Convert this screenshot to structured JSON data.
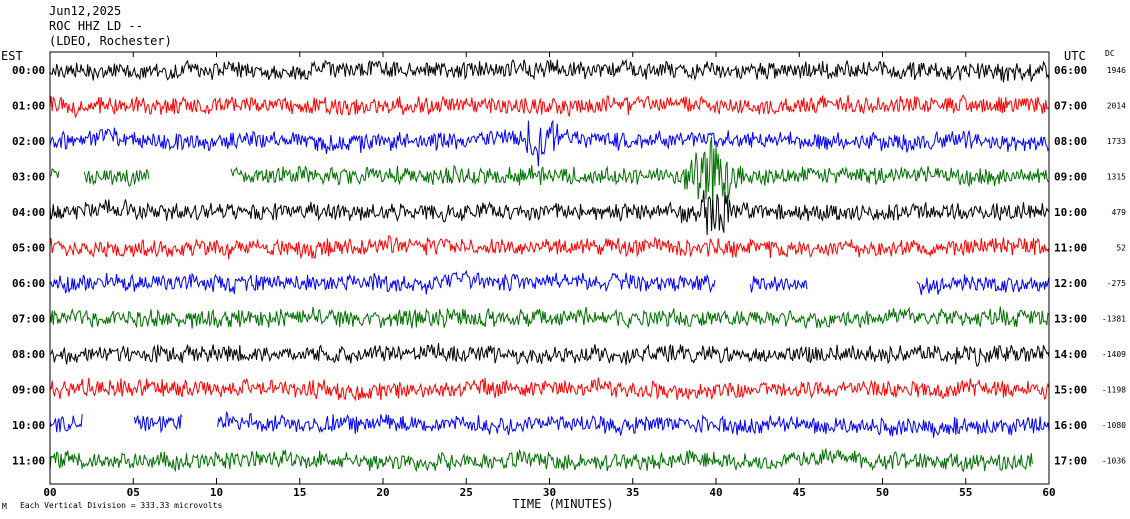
{
  "header": {
    "date": "Jun12,2025",
    "station": "ROC HHZ LD --",
    "network": "(LDEO, Rochester)"
  },
  "left_axis_label": "EST",
  "right_axis_label": "UTC",
  "dc_label": "DC",
  "footer_note": "Each Vertical Division =  333.33 microvolts",
  "corner_mark": "M",
  "colors": {
    "trace_cycle": [
      "#000000",
      "#ff0000",
      "#0000ff",
      "#007000"
    ],
    "frame": "#000000",
    "background": "#ffffff"
  },
  "chart_data": {
    "type": "line",
    "subtype": "helicorder",
    "xlabel": "TIME (MINUTES)",
    "xlim": [
      0,
      60
    ],
    "x_ticks": [
      "00",
      "05",
      "10",
      "15",
      "20",
      "25",
      "30",
      "35",
      "40",
      "45",
      "50",
      "55",
      "60"
    ],
    "rows": [
      {
        "est": "00:00",
        "utc": "06:00",
        "dc": "1946"
      },
      {
        "est": "01:00",
        "utc": "07:00",
        "dc": "2014"
      },
      {
        "est": "02:00",
        "utc": "08:00",
        "dc": "1733"
      },
      {
        "est": "03:00",
        "utc": "09:00",
        "dc": "1315"
      },
      {
        "est": "04:00",
        "utc": "10:00",
        "dc": "479"
      },
      {
        "est": "05:00",
        "utc": "11:00",
        "dc": "52"
      },
      {
        "est": "06:00",
        "utc": "12:00",
        "dc": "-275"
      },
      {
        "est": "07:00",
        "utc": "13:00",
        "dc": "-1381"
      },
      {
        "est": "08:00",
        "utc": "14:00",
        "dc": "-1409"
      },
      {
        "est": "09:00",
        "utc": "15:00",
        "dc": "-1198"
      },
      {
        "est": "10:00",
        "utc": "16:00",
        "dc": "-1080"
      },
      {
        "est": "11:00",
        "utc": "17:00",
        "dc": "-1036"
      }
    ],
    "last_row_end_minute": 59,
    "gaps": [
      {
        "row": 3,
        "from_minute": 0.6,
        "to_minute": 2.0
      },
      {
        "row": 3,
        "from_minute": 6.0,
        "to_minute": 10.8
      },
      {
        "row": 6,
        "from_minute": 40.0,
        "to_minute": 42.0
      },
      {
        "row": 6,
        "from_minute": 45.5,
        "to_minute": 52.0
      },
      {
        "row": 10,
        "from_minute": 2.0,
        "to_minute": 5.0
      },
      {
        "row": 10,
        "from_minute": 8.0,
        "to_minute": 10.0
      }
    ],
    "events": [
      {
        "row": 2,
        "minute": 29.5
      },
      {
        "row": 3,
        "minute": 39.0
      },
      {
        "row": 3,
        "minute": 40.5
      },
      {
        "row": 4,
        "minute": 40.0
      }
    ]
  }
}
